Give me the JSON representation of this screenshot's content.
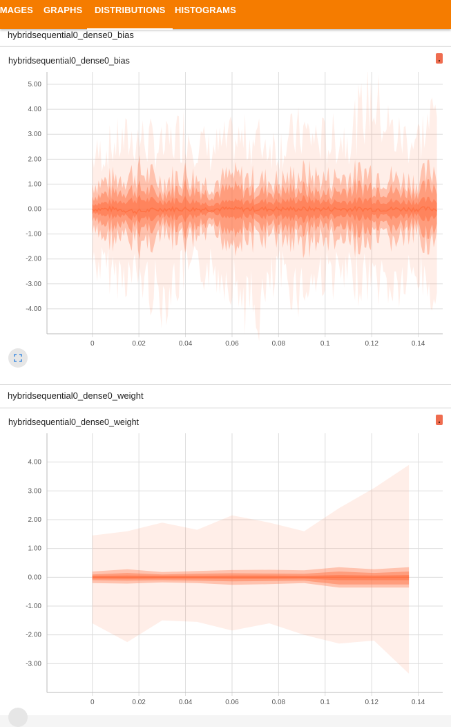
{
  "nav": {
    "tabs": [
      {
        "label": "IMAGES"
      },
      {
        "label": "GRAPHS"
      },
      {
        "label": "DISTRIBUTIONS"
      },
      {
        "label": "HISTOGRAMS"
      }
    ],
    "active_tab": "DISTRIBUTIONS",
    "bar_color": "#f57c00"
  },
  "sections": [
    {
      "group_title": "hybridsequential0_dense0_bias",
      "card_title": "hybridsequential0_dense0_bias",
      "expand_icon": "fullscreen-icon"
    },
    {
      "group_title": "hybridsequential0_dense0_weight",
      "card_title": "hybridsequential0_dense0_weight",
      "expand_icon": "fullscreen-icon"
    }
  ],
  "chart_data": [
    {
      "type": "area",
      "title": "hybridsequential0_dense0_bias",
      "xlabel": "",
      "ylabel": "",
      "x_ticks": [
        "0",
        "0.02",
        "0.04",
        "0.06",
        "0.08",
        "0.1",
        "0.12",
        "0.14"
      ],
      "y_ticks": [
        "5.00",
        "4.00",
        "3.00",
        "2.00",
        "1.00",
        "0.00",
        "-1.00",
        "-2.00",
        "-3.00",
        "-4.00"
      ],
      "xlim": [
        -0.0195,
        0.1505
      ],
      "ylim": [
        -5.0,
        5.5
      ],
      "grid": true,
      "color": "#ff7043",
      "series_description_points": "dense noisy distribution across x 0 to 0.148; outer band roughly -3 to 3 with spikes near 4.8 and -4.6; inner bands roughly -1.3 to 1.5; median near 0",
      "x": [
        0,
        0.01,
        0.02,
        0.03,
        0.04,
        0.05,
        0.06,
        0.07,
        0.08,
        0.09,
        0.1,
        0.11,
        0.12,
        0.13,
        0.14,
        0.148
      ],
      "bands": {
        "max": [
          2.2,
          2.8,
          3.1,
          2.6,
          3.4,
          2.5,
          2.9,
          3.0,
          2.7,
          3.3,
          2.9,
          3.2,
          4.8,
          3.1,
          3.0,
          4.2
        ],
        "p93": [
          1.0,
          1.2,
          1.5,
          1.1,
          1.4,
          1.0,
          1.3,
          1.2,
          1.1,
          1.4,
          1.2,
          1.3,
          1.5,
          1.2,
          1.1,
          1.7
        ],
        "p84": [
          0.5,
          0.7,
          0.8,
          0.6,
          0.9,
          0.6,
          0.8,
          0.7,
          0.7,
          0.8,
          0.6,
          0.8,
          0.9,
          0.7,
          0.7,
          1.0
        ],
        "p69": [
          0.2,
          0.3,
          0.4,
          0.3,
          0.4,
          0.2,
          0.3,
          0.3,
          0.3,
          0.4,
          0.3,
          0.3,
          0.4,
          0.3,
          0.3,
          0.4
        ],
        "median": [
          0.0,
          0.0,
          -0.1,
          0.0,
          0.0,
          0.0,
          0.0,
          0.0,
          0.0,
          0.0,
          0.0,
          0.0,
          0.0,
          0.0,
          0.0,
          0.0
        ],
        "p31": [
          -0.2,
          -0.3,
          -0.4,
          -0.3,
          -0.4,
          -0.2,
          -0.3,
          -0.3,
          -0.3,
          -0.4,
          -0.3,
          -0.3,
          -0.4,
          -0.3,
          -0.3,
          -0.4
        ],
        "p16": [
          -0.5,
          -0.7,
          -0.8,
          -0.6,
          -0.9,
          -0.6,
          -0.8,
          -0.7,
          -0.7,
          -0.8,
          -0.6,
          -0.8,
          -0.9,
          -0.7,
          -0.7,
          -1.0
        ],
        "p7": [
          -1.0,
          -1.2,
          -1.4,
          -1.1,
          -1.3,
          -1.0,
          -1.3,
          -1.2,
          -1.1,
          -1.4,
          -1.2,
          -1.3,
          -1.4,
          -1.2,
          -1.1,
          -1.5
        ],
        "min": [
          -2.3,
          -2.8,
          -2.9,
          -3.8,
          -2.7,
          -2.6,
          -3.0,
          -4.6,
          -2.8,
          -3.5,
          -2.7,
          -3.1,
          -2.9,
          -3.4,
          -2.8,
          -3.8
        ]
      }
    },
    {
      "type": "area",
      "title": "hybridsequential0_dense0_weight",
      "xlabel": "",
      "ylabel": "",
      "x_ticks": [
        "0",
        "0.02",
        "0.04",
        "0.06",
        "0.08",
        "0.1",
        "0.12",
        "0.14"
      ],
      "y_ticks": [
        "4.00",
        "3.00",
        "2.00",
        "1.00",
        "0.00",
        "-1.00",
        "-2.00",
        "-3.00"
      ],
      "xlim": [
        -0.0195,
        0.1505
      ],
      "ylim": [
        -4.0,
        5.0
      ],
      "grid": true,
      "color": "#ff7043",
      "x": [
        0,
        0.015,
        0.03,
        0.045,
        0.06,
        0.076,
        0.091,
        0.106,
        0.121,
        0.136
      ],
      "bands": {
        "max": [
          1.45,
          1.6,
          1.9,
          1.65,
          2.15,
          1.9,
          1.6,
          2.4,
          3.1,
          3.9
        ],
        "p93": [
          0.2,
          0.28,
          0.18,
          0.22,
          0.25,
          0.26,
          0.24,
          0.35,
          0.28,
          0.35
        ],
        "p84": [
          0.1,
          0.15,
          0.1,
          0.12,
          0.14,
          0.13,
          0.12,
          0.2,
          0.15,
          0.2
        ],
        "p69": [
          0.05,
          0.06,
          0.05,
          0.05,
          0.06,
          0.06,
          0.05,
          0.08,
          0.06,
          0.08
        ],
        "median": [
          0.0,
          0.0,
          0.0,
          0.0,
          0.0,
          0.0,
          0.0,
          0.0,
          0.0,
          0.0
        ],
        "p31": [
          -0.05,
          -0.06,
          -0.05,
          -0.05,
          -0.06,
          -0.06,
          -0.05,
          -0.1,
          -0.1,
          -0.1
        ],
        "p16": [
          -0.1,
          -0.12,
          -0.1,
          -0.12,
          -0.14,
          -0.13,
          -0.12,
          -0.25,
          -0.25,
          -0.25
        ],
        "p7": [
          -0.2,
          -0.22,
          -0.18,
          -0.2,
          -0.26,
          -0.24,
          -0.2,
          -0.36,
          -0.36,
          -0.36
        ],
        "min": [
          -1.6,
          -2.25,
          -1.5,
          -1.55,
          -1.85,
          -1.6,
          -2.0,
          -2.3,
          -2.2,
          -3.35
        ]
      }
    }
  ]
}
